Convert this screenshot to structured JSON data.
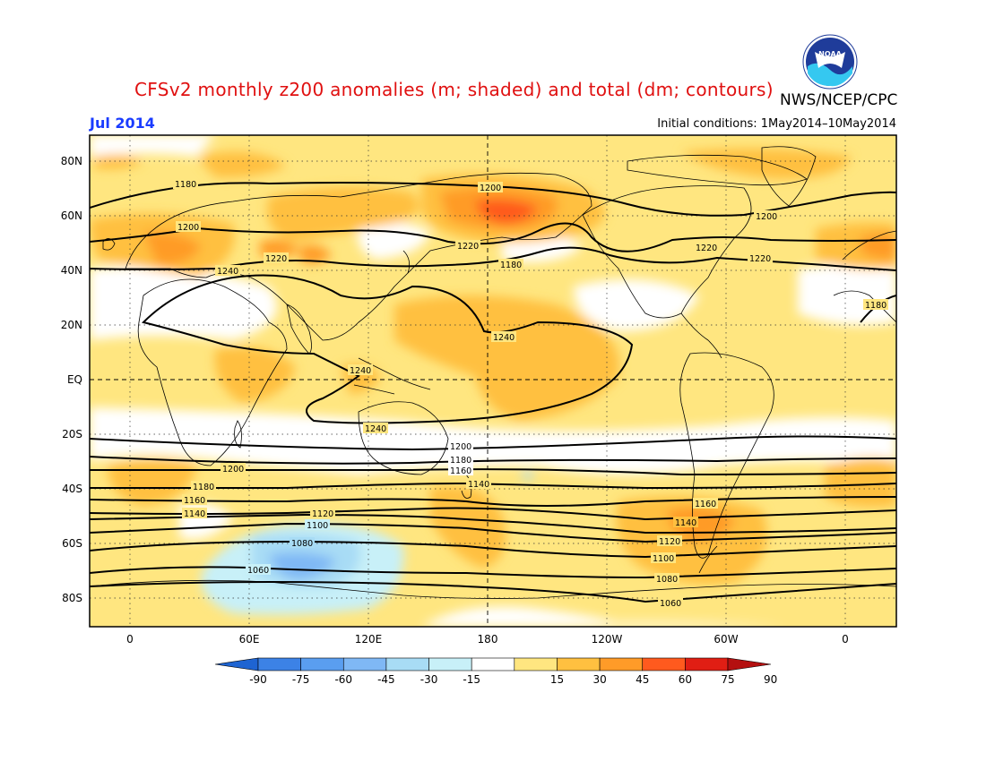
{
  "header": {
    "title": "CFSv2 monthly z200 anomalies (m; shaded) and total (dm; contours)",
    "agency": "NWS/NCEP/CPC",
    "month": "Jul 2014",
    "initial_conditions": "Initial conditions: 1May2014–10May2014",
    "logo_text": "NOAA"
  },
  "map": {
    "lat_labels": [
      "80N",
      "60N",
      "40N",
      "20N",
      "EQ",
      "20S",
      "40S",
      "60S",
      "80S"
    ],
    "lon_labels": [
      "0",
      "60E",
      "120E",
      "180",
      "120W",
      "60W",
      "0"
    ],
    "contour_labels": [
      "1180",
      "1200",
      "1220",
      "1240",
      "1240",
      "1240",
      "1240",
      "1180",
      "1200",
      "1220",
      "1180",
      "1200",
      "1220",
      "1220",
      "1200",
      "1180",
      "1160",
      "1140",
      "1120",
      "1100",
      "1080",
      "1060",
      "1200",
      "1180",
      "1160",
      "1140",
      "1120",
      "1100",
      "1080",
      "1060",
      "1140",
      "1160"
    ]
  },
  "colorbar": {
    "ticks": [
      "-90",
      "-75",
      "-60",
      "-45",
      "-30",
      "-15",
      "15",
      "30",
      "45",
      "60",
      "75",
      "90"
    ],
    "colors": [
      "#1e64d2",
      "#3c82e6",
      "#5a9ef0",
      "#7fb8f5",
      "#a8dcf5",
      "#c8f0f8",
      "#ffffff",
      "#ffe680",
      "#ffc040",
      "#ff9b28",
      "#ff5a1e",
      "#e01e14",
      "#b41010"
    ]
  }
}
